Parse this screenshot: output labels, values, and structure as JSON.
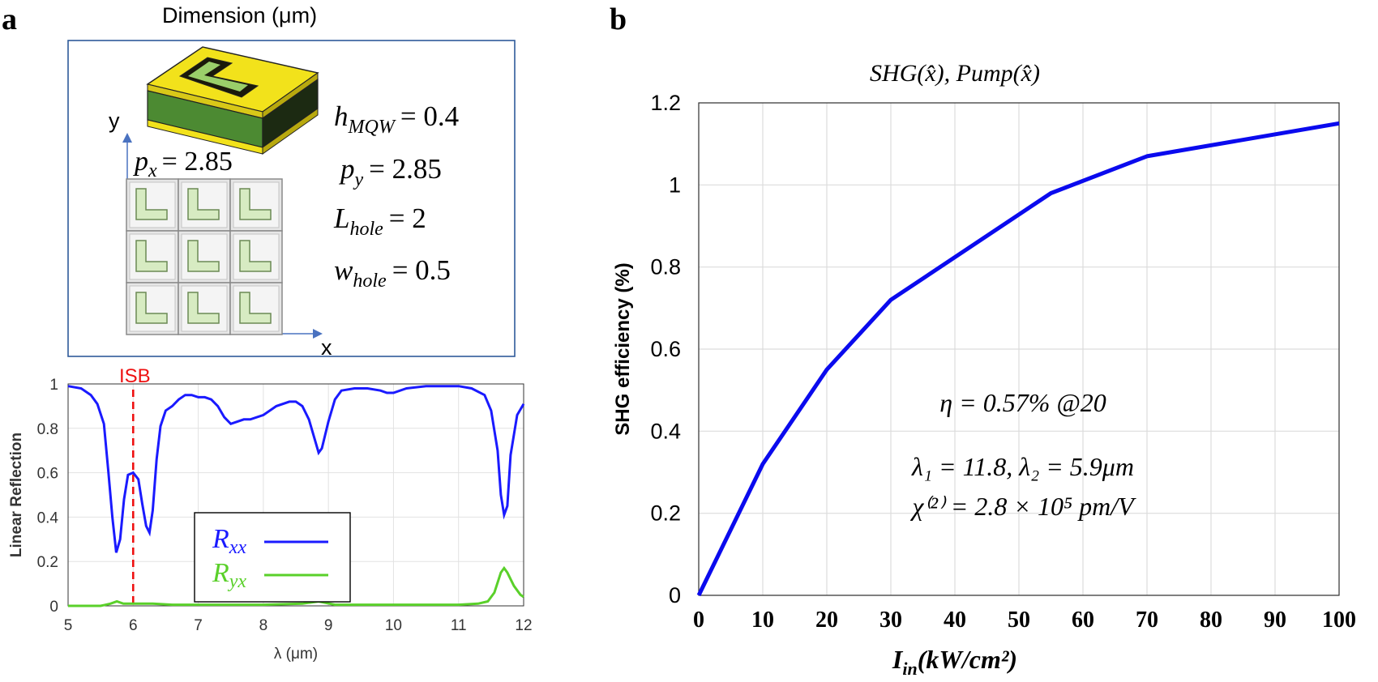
{
  "panel_a": {
    "letter": "a",
    "title": "Dimension (μm)",
    "axis_y": "y",
    "axis_x": "x",
    "px_label": "p",
    "px_sub": "x",
    "px_value": "= 2.85",
    "dims": [
      {
        "sym": "h",
        "sub": "MQW",
        "val": "= 0.4"
      },
      {
        "sym": "p",
        "sub": "y",
        "val": "= 2.85"
      },
      {
        "sym": "L",
        "sub": "hole",
        "val": "= 2"
      },
      {
        "sym": "w",
        "sub": "hole",
        "val": "= 0.5"
      }
    ]
  },
  "panel_b": {
    "letter": "b",
    "annotation_eta": "η = 0.57% @20",
    "annotation_lambda": "λ₁ = 11.8, λ₂ = 5.9μm",
    "annotation_chi": "χ⁽²⁾ = 2.8 × 10⁵ pm/V"
  },
  "colors": {
    "rxx": "#1a1aff",
    "ryx": "#5ad02a",
    "isb": "#ee1111",
    "shg": "#0a0aee",
    "frame": "#2e5a99"
  },
  "chart_data": [
    {
      "type": "line",
      "title": "",
      "xlabel": "λ (μm)",
      "ylabel": "Linear Reflection",
      "xlim": [
        5,
        12
      ],
      "ylim": [
        0,
        1
      ],
      "xticks": [
        5,
        6,
        7,
        8,
        9,
        10,
        11,
        12
      ],
      "yticks": [
        0,
        0.2,
        0.4,
        0.6,
        0.8,
        1
      ],
      "marker_label": "ISB",
      "marker_x": 6.0,
      "grid": true,
      "legend_position": "bottom-center",
      "series": [
        {
          "name": "Rxx",
          "sym": "R",
          "sub": "xx",
          "x": [
            5.0,
            5.2,
            5.35,
            5.45,
            5.55,
            5.62,
            5.68,
            5.74,
            5.8,
            5.86,
            5.92,
            6.0,
            6.08,
            6.14,
            6.2,
            6.25,
            6.3,
            6.36,
            6.42,
            6.5,
            6.6,
            6.7,
            6.8,
            6.9,
            7.0,
            7.1,
            7.2,
            7.3,
            7.4,
            7.5,
            7.6,
            7.7,
            7.8,
            8.0,
            8.2,
            8.4,
            8.5,
            8.6,
            8.7,
            8.8,
            8.85,
            8.9,
            9.0,
            9.1,
            9.2,
            9.4,
            9.6,
            9.8,
            9.9,
            10.0,
            10.2,
            10.5,
            10.8,
            11.0,
            11.2,
            11.4,
            11.5,
            11.6,
            11.65,
            11.7,
            11.75,
            11.8,
            11.9,
            12.0
          ],
          "y": [
            0.99,
            0.98,
            0.95,
            0.91,
            0.82,
            0.6,
            0.4,
            0.24,
            0.3,
            0.48,
            0.59,
            0.6,
            0.57,
            0.46,
            0.36,
            0.33,
            0.43,
            0.66,
            0.81,
            0.88,
            0.9,
            0.93,
            0.95,
            0.95,
            0.94,
            0.94,
            0.93,
            0.9,
            0.85,
            0.82,
            0.83,
            0.84,
            0.84,
            0.86,
            0.9,
            0.92,
            0.92,
            0.9,
            0.84,
            0.74,
            0.69,
            0.71,
            0.83,
            0.93,
            0.97,
            0.98,
            0.98,
            0.97,
            0.96,
            0.96,
            0.98,
            0.99,
            0.99,
            0.99,
            0.98,
            0.95,
            0.88,
            0.7,
            0.5,
            0.41,
            0.45,
            0.68,
            0.86,
            0.91
          ]
        },
        {
          "name": "Ryx",
          "sym": "R",
          "sub": "yx",
          "x": [
            5.0,
            5.5,
            5.65,
            5.75,
            5.85,
            6.0,
            6.3,
            6.6,
            7.0,
            8.0,
            8.6,
            8.85,
            9.1,
            10.0,
            11.0,
            11.3,
            11.45,
            11.55,
            11.65,
            11.7,
            11.75,
            11.85,
            11.95,
            12.0
          ],
          "y": [
            0.0,
            0.0,
            0.01,
            0.02,
            0.01,
            0.01,
            0.01,
            0.005,
            0.005,
            0.005,
            0.01,
            0.02,
            0.005,
            0.005,
            0.005,
            0.01,
            0.02,
            0.06,
            0.15,
            0.17,
            0.15,
            0.09,
            0.05,
            0.04
          ]
        }
      ]
    },
    {
      "type": "line",
      "title": "SHG(x̂), Pump(x̂)",
      "xlabel": "Iin(kW/cm²)",
      "ylabel": "SHG efficiency (%)",
      "xlim": [
        0,
        100
      ],
      "ylim": [
        0,
        1.2
      ],
      "xticks": [
        0,
        10,
        20,
        30,
        40,
        50,
        60,
        70,
        80,
        90,
        100
      ],
      "yticks": [
        0,
        0.2,
        0.4,
        0.6,
        0.8,
        1,
        1.2
      ],
      "grid": true,
      "series": [
        {
          "name": "SHG efficiency",
          "x": [
            0,
            10,
            20,
            30,
            55,
            70,
            100
          ],
          "y": [
            0,
            0.32,
            0.55,
            0.72,
            0.98,
            1.07,
            1.15
          ]
        }
      ]
    }
  ]
}
